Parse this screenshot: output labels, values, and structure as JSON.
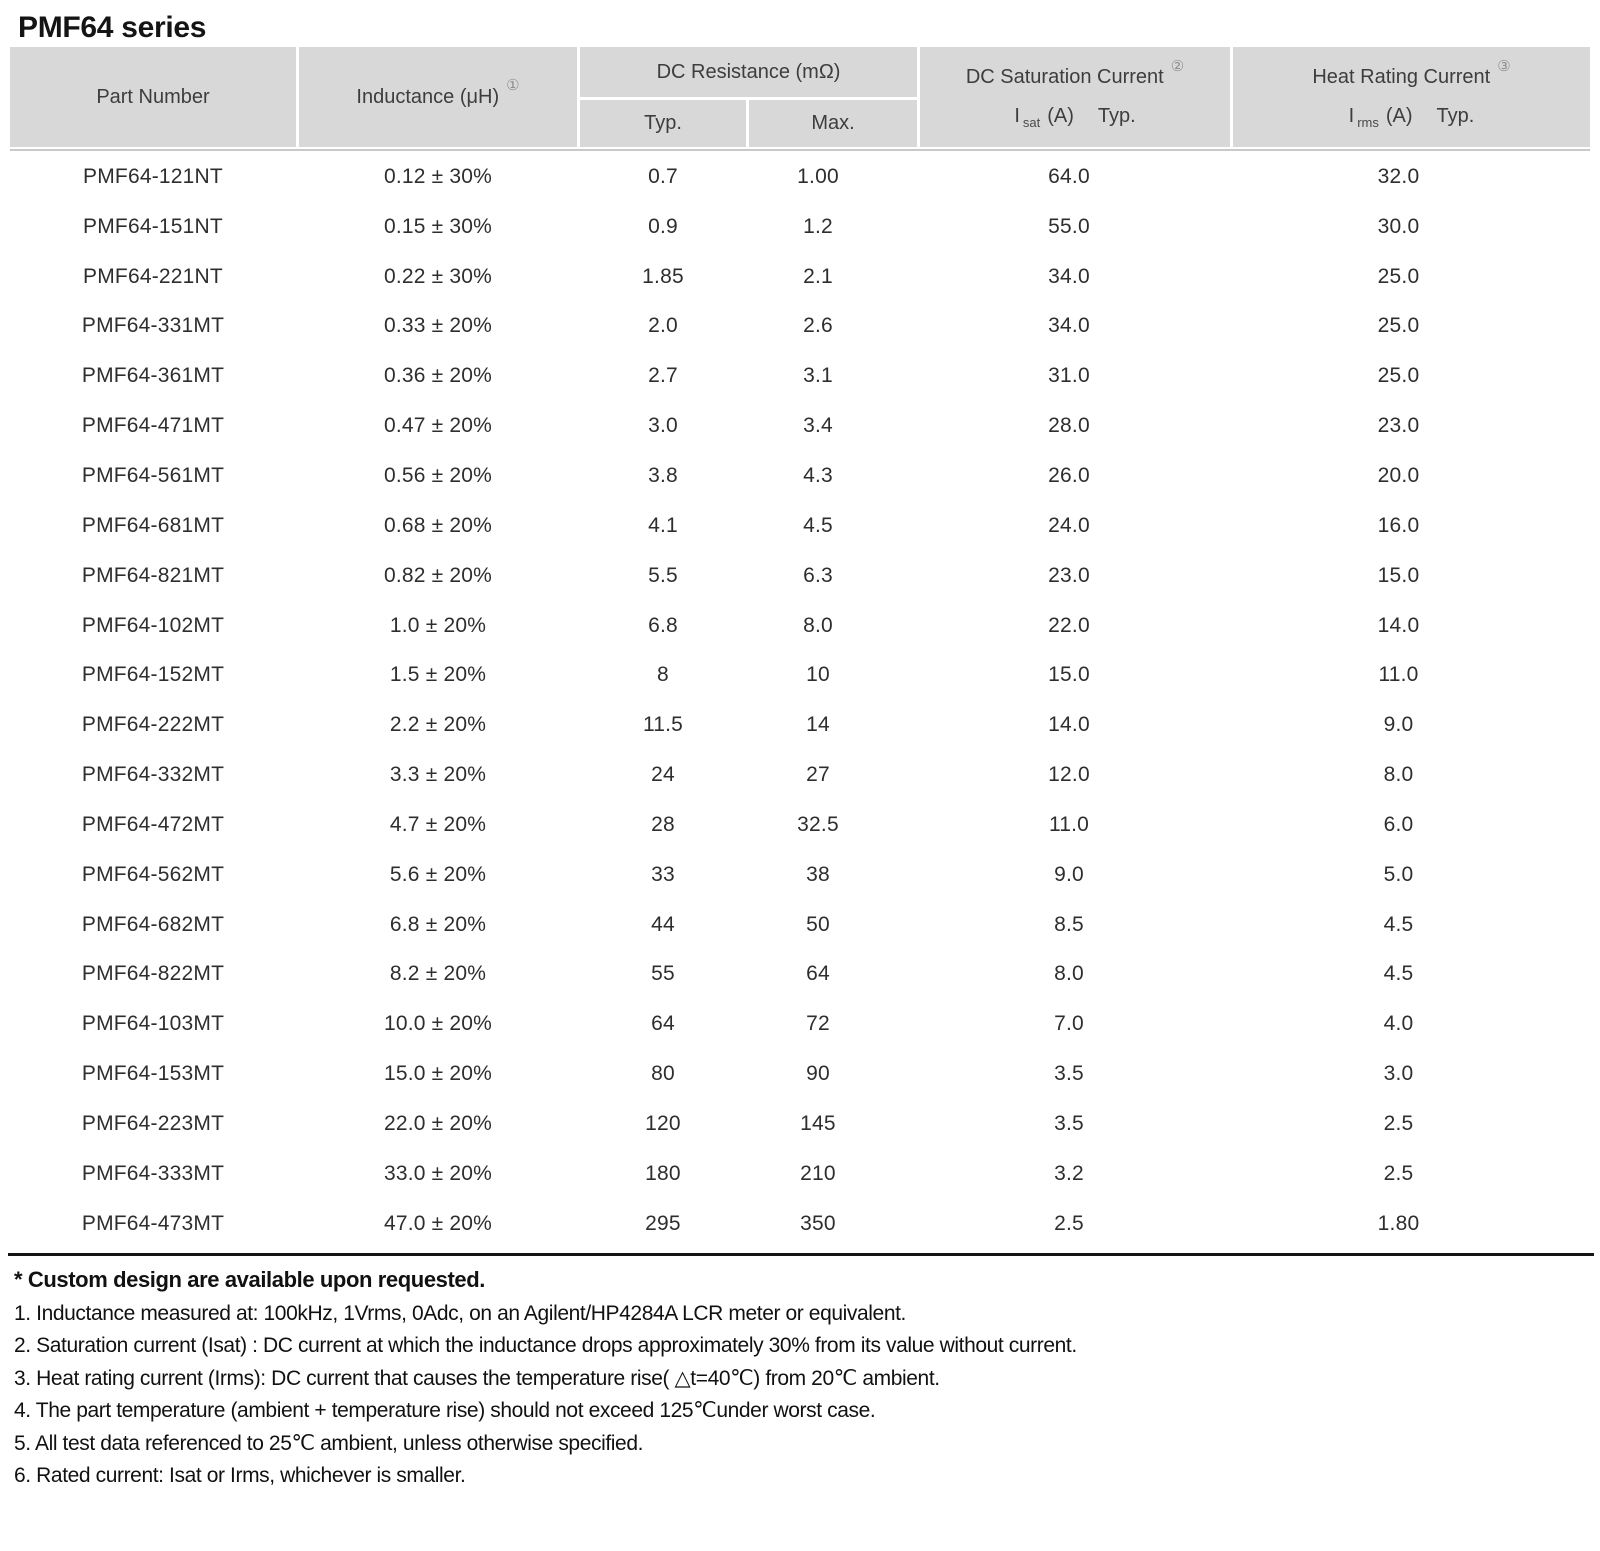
{
  "title": "PMF64 series",
  "table": {
    "headers": {
      "part_number": "Part Number",
      "inductance": {
        "label": "Inductance (μH)",
        "sup": "①"
      },
      "dc_resistance": {
        "label": "DC Resistance (mΩ)",
        "typ": "Typ.",
        "max": "Max."
      },
      "saturation": {
        "label": "DC Saturation Current",
        "sup": "②",
        "i": "I",
        "sub": "sat",
        "unit": "(A)",
        "typ": "Typ."
      },
      "heat": {
        "label": "Heat Rating Current",
        "sup": "③",
        "i": "I",
        "sub": "rms",
        "unit": "(A)",
        "typ": "Typ."
      }
    },
    "rows": [
      [
        "PMF64-121NT",
        "0.12 ± 30%",
        "0.7",
        "1.00",
        "64.0",
        "32.0"
      ],
      [
        "PMF64-151NT",
        "0.15 ± 30%",
        "0.9",
        "1.2",
        "55.0",
        "30.0"
      ],
      [
        "PMF64-221NT",
        "0.22 ± 30%",
        "1.85",
        "2.1",
        "34.0",
        "25.0"
      ],
      [
        "PMF64-331MT",
        "0.33 ± 20%",
        "2.0",
        "2.6",
        "34.0",
        "25.0"
      ],
      [
        "PMF64-361MT",
        "0.36 ± 20%",
        "2.7",
        "3.1",
        "31.0",
        "25.0"
      ],
      [
        "PMF64-471MT",
        "0.47 ± 20%",
        "3.0",
        "3.4",
        "28.0",
        "23.0"
      ],
      [
        "PMF64-561MT",
        "0.56 ± 20%",
        "3.8",
        "4.3",
        "26.0",
        "20.0"
      ],
      [
        "PMF64-681MT",
        "0.68 ± 20%",
        "4.1",
        "4.5",
        "24.0",
        "16.0"
      ],
      [
        "PMF64-821MT",
        "0.82 ± 20%",
        "5.5",
        "6.3",
        "23.0",
        "15.0"
      ],
      [
        "PMF64-102MT",
        "1.0 ± 20%",
        "6.8",
        "8.0",
        "22.0",
        "14.0"
      ],
      [
        "PMF64-152MT",
        "1.5 ± 20%",
        "8",
        "10",
        "15.0",
        "11.0"
      ],
      [
        "PMF64-222MT",
        "2.2 ± 20%",
        "11.5",
        "14",
        "14.0",
        "9.0"
      ],
      [
        "PMF64-332MT",
        "3.3 ± 20%",
        "24",
        "27",
        "12.0",
        "8.0"
      ],
      [
        "PMF64-472MT",
        "4.7 ± 20%",
        "28",
        "32.5",
        "11.0",
        "6.0"
      ],
      [
        "PMF64-562MT",
        "5.6 ± 20%",
        "33",
        "38",
        "9.0",
        "5.0"
      ],
      [
        "PMF64-682MT",
        "6.8 ± 20%",
        "44",
        "50",
        "8.5",
        "4.5"
      ],
      [
        "PMF64-822MT",
        "8.2 ± 20%",
        "55",
        "64",
        "8.0",
        "4.5"
      ],
      [
        "PMF64-103MT",
        "10.0 ± 20%",
        "64",
        "72",
        "7.0",
        "4.0"
      ],
      [
        "PMF64-153MT",
        "15.0 ± 20%",
        "80",
        "90",
        "3.5",
        "3.0"
      ],
      [
        "PMF64-223MT",
        "22.0 ± 20%",
        "120",
        "145",
        "3.5",
        "2.5"
      ],
      [
        "PMF64-333MT",
        "33.0 ± 20%",
        "180",
        "210",
        "3.2",
        "2.5"
      ],
      [
        "PMF64-473MT",
        "47.0 ± 20%",
        "295",
        "350",
        "2.5",
        "1.80"
      ]
    ]
  },
  "notes": {
    "custom": "* Custom design are available upon requested.",
    "items": [
      "1. Inductance measured at: 100kHz, 1Vrms, 0Adc, on an Agilent/HP4284A LCR meter or equivalent.",
      "2. Saturation current (Isat) : DC current at which the inductance drops approximately 30% from its value without current.",
      "3. Heat rating current (Irms): DC current that causes the temperature rise( △t=40℃) from 20℃ ambient.",
      "4. The part temperature (ambient + temperature rise) should not exceed 125℃under worst case.",
      "5. All test data referenced to 25℃ ambient, unless otherwise specified.",
      "6. Rated current: Isat or Irms, whichever is smaller."
    ]
  }
}
